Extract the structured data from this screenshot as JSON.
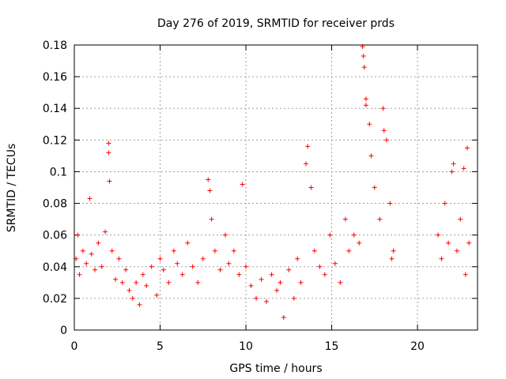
{
  "chart_data": {
    "type": "scatter",
    "title": "Day 276 of 2019, SRMTID for receiver prds",
    "xlabel": "GPS time / hours",
    "ylabel": "SRMTID / TECUs",
    "xlim": [
      0,
      23.5
    ],
    "ylim": [
      0,
      0.18
    ],
    "xticks": [
      0,
      5,
      10,
      15,
      20
    ],
    "xtick_labels": [
      "0",
      "5",
      "10",
      "15",
      "20"
    ],
    "yticks": [
      0,
      0.02,
      0.04,
      0.06,
      0.08,
      0.1,
      0.12,
      0.14,
      0.16,
      0.18
    ],
    "ytick_labels": [
      "0",
      "0.02",
      "0.04",
      "0.06",
      "0.08",
      "0.1",
      "0.12",
      "0.14",
      "0.16",
      "0.18"
    ],
    "grid": true,
    "marker": "+",
    "color": "#ff0000",
    "series": [
      {
        "name": "SRMTID",
        "points": [
          [
            0.1,
            0.045
          ],
          [
            0.2,
            0.06
          ],
          [
            0.3,
            0.035
          ],
          [
            0.5,
            0.05
          ],
          [
            0.7,
            0.042
          ],
          [
            0.9,
            0.083
          ],
          [
            1.0,
            0.048
          ],
          [
            1.2,
            0.038
          ],
          [
            1.4,
            0.055
          ],
          [
            1.6,
            0.04
          ],
          [
            1.8,
            0.062
          ],
          [
            2.0,
            0.118
          ],
          [
            2.0,
            0.112
          ],
          [
            2.05,
            0.094
          ],
          [
            2.2,
            0.05
          ],
          [
            2.4,
            0.032
          ],
          [
            2.6,
            0.045
          ],
          [
            2.8,
            0.03
          ],
          [
            3.0,
            0.038
          ],
          [
            3.2,
            0.025
          ],
          [
            3.4,
            0.02
          ],
          [
            3.6,
            0.03
          ],
          [
            3.8,
            0.016
          ],
          [
            4.0,
            0.035
          ],
          [
            4.2,
            0.028
          ],
          [
            4.5,
            0.04
          ],
          [
            4.8,
            0.022
          ],
          [
            5.0,
            0.045
          ],
          [
            5.2,
            0.038
          ],
          [
            5.5,
            0.03
          ],
          [
            5.8,
            0.05
          ],
          [
            6.0,
            0.042
          ],
          [
            6.3,
            0.035
          ],
          [
            6.6,
            0.055
          ],
          [
            6.9,
            0.04
          ],
          [
            7.2,
            0.03
          ],
          [
            7.5,
            0.045
          ],
          [
            7.8,
            0.095
          ],
          [
            7.9,
            0.088
          ],
          [
            8.0,
            0.07
          ],
          [
            8.2,
            0.05
          ],
          [
            8.5,
            0.038
          ],
          [
            8.8,
            0.06
          ],
          [
            9.0,
            0.042
          ],
          [
            9.3,
            0.05
          ],
          [
            9.6,
            0.035
          ],
          [
            9.8,
            0.092
          ],
          [
            10.0,
            0.04
          ],
          [
            10.3,
            0.028
          ],
          [
            10.6,
            0.02
          ],
          [
            10.9,
            0.032
          ],
          [
            11.2,
            0.018
          ],
          [
            11.5,
            0.035
          ],
          [
            11.8,
            0.025
          ],
          [
            12.0,
            0.03
          ],
          [
            12.2,
            0.008
          ],
          [
            12.5,
            0.038
          ],
          [
            12.8,
            0.02
          ],
          [
            13.0,
            0.045
          ],
          [
            13.2,
            0.03
          ],
          [
            13.5,
            0.105
          ],
          [
            13.6,
            0.116
          ],
          [
            13.8,
            0.09
          ],
          [
            14.0,
            0.05
          ],
          [
            14.3,
            0.04
          ],
          [
            14.6,
            0.035
          ],
          [
            14.9,
            0.06
          ],
          [
            15.2,
            0.042
          ],
          [
            15.5,
            0.03
          ],
          [
            15.8,
            0.07
          ],
          [
            16.0,
            0.05
          ],
          [
            16.3,
            0.06
          ],
          [
            16.6,
            0.055
          ],
          [
            16.8,
            0.179
          ],
          [
            16.85,
            0.173
          ],
          [
            16.9,
            0.166
          ],
          [
            17.0,
            0.146
          ],
          [
            17.0,
            0.142
          ],
          [
            17.2,
            0.13
          ],
          [
            17.3,
            0.11
          ],
          [
            17.5,
            0.09
          ],
          [
            17.8,
            0.07
          ],
          [
            18.0,
            0.14
          ],
          [
            18.05,
            0.126
          ],
          [
            18.2,
            0.12
          ],
          [
            18.4,
            0.08
          ],
          [
            18.5,
            0.045
          ],
          [
            18.6,
            0.05
          ],
          [
            21.2,
            0.06
          ],
          [
            21.4,
            0.045
          ],
          [
            21.6,
            0.08
          ],
          [
            21.8,
            0.055
          ],
          [
            22.0,
            0.1
          ],
          [
            22.1,
            0.105
          ],
          [
            22.3,
            0.05
          ],
          [
            22.5,
            0.07
          ],
          [
            22.7,
            0.102
          ],
          [
            22.9,
            0.115
          ],
          [
            23.0,
            0.055
          ],
          [
            22.8,
            0.035
          ]
        ]
      }
    ]
  }
}
